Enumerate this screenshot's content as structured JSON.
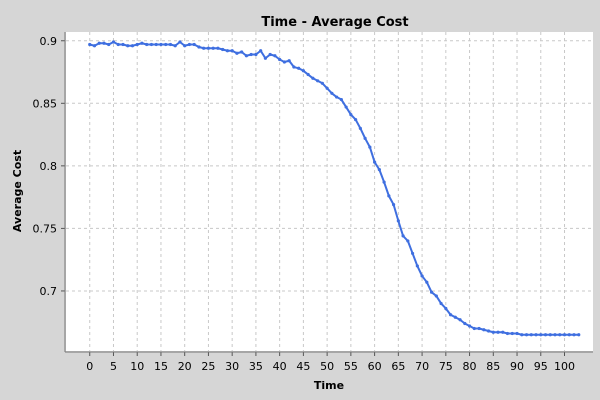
{
  "chart_data": {
    "type": "line",
    "title": "Time - Average Cost",
    "xlabel": "Time",
    "ylabel": "Average Cost",
    "xlim": [
      -5,
      106
    ],
    "ylim": [
      0.652,
      0.907
    ],
    "xticks": [
      0,
      5,
      10,
      15,
      20,
      25,
      30,
      35,
      40,
      45,
      50,
      55,
      60,
      65,
      70,
      75,
      80,
      85,
      90,
      95,
      100
    ],
    "yticks": [
      0.7,
      0.75,
      0.8,
      0.85,
      0.9
    ],
    "xtick_labels": [
      "0",
      "5",
      "10",
      "15",
      "20",
      "25",
      "30",
      "35",
      "40",
      "45",
      "50",
      "55",
      "60",
      "65",
      "70",
      "75",
      "80",
      "85",
      "90",
      "95",
      "100"
    ],
    "ytick_labels": [
      "0.7",
      "0.75",
      "0.8",
      "0.85",
      "0.9"
    ],
    "grid": true,
    "legend": "none",
    "colors": {
      "line": "#3f6fe0",
      "background": "#ffffff",
      "page": "#d6d6d6",
      "grid": "#c8c8c8"
    },
    "series": [
      {
        "x": [
          0,
          1,
          2,
          3,
          4,
          5,
          6,
          7,
          8,
          9,
          10,
          11,
          12,
          13,
          14,
          15,
          16,
          17,
          18,
          19,
          20,
          21,
          22,
          23,
          24,
          25,
          26,
          27,
          28,
          29,
          30,
          31,
          32,
          33,
          34,
          35,
          36,
          37,
          38,
          39,
          40,
          41,
          42,
          43,
          44,
          45,
          46,
          47,
          48,
          49,
          50,
          51,
          52,
          53,
          54,
          55,
          56,
          57,
          58,
          59,
          60,
          61,
          62,
          63,
          64,
          65,
          66,
          67,
          68,
          69,
          70,
          71,
          72,
          73,
          74,
          75,
          76,
          77,
          78,
          79,
          80,
          81,
          82,
          83,
          84,
          85,
          86,
          87,
          88,
          89,
          90,
          91,
          92,
          93,
          94,
          95,
          96,
          97,
          98,
          99,
          100,
          101,
          102,
          103
        ],
        "y": [
          0.897,
          0.896,
          0.898,
          0.898,
          0.897,
          0.899,
          0.897,
          0.897,
          0.896,
          0.896,
          0.897,
          0.898,
          0.897,
          0.897,
          0.897,
          0.897,
          0.897,
          0.897,
          0.896,
          0.899,
          0.896,
          0.897,
          0.897,
          0.895,
          0.894,
          0.894,
          0.894,
          0.894,
          0.893,
          0.892,
          0.892,
          0.89,
          0.891,
          0.888,
          0.889,
          0.889,
          0.892,
          0.886,
          0.889,
          0.888,
          0.885,
          0.883,
          0.884,
          0.879,
          0.878,
          0.876,
          0.873,
          0.87,
          0.868,
          0.866,
          0.862,
          0.858,
          0.855,
          0.853,
          0.847,
          0.841,
          0.837,
          0.83,
          0.822,
          0.815,
          0.803,
          0.797,
          0.787,
          0.776,
          0.769,
          0.756,
          0.744,
          0.74,
          0.73,
          0.72,
          0.712,
          0.707,
          0.699,
          0.696,
          0.69,
          0.686,
          0.681,
          0.679,
          0.677,
          0.674,
          0.672,
          0.67,
          0.67,
          0.669,
          0.668,
          0.667,
          0.667,
          0.667,
          0.666,
          0.666,
          0.666,
          0.665,
          0.665,
          0.665,
          0.665,
          0.665,
          0.665,
          0.665,
          0.665,
          0.665,
          0.665,
          0.665,
          0.665,
          0.665
        ]
      }
    ]
  }
}
